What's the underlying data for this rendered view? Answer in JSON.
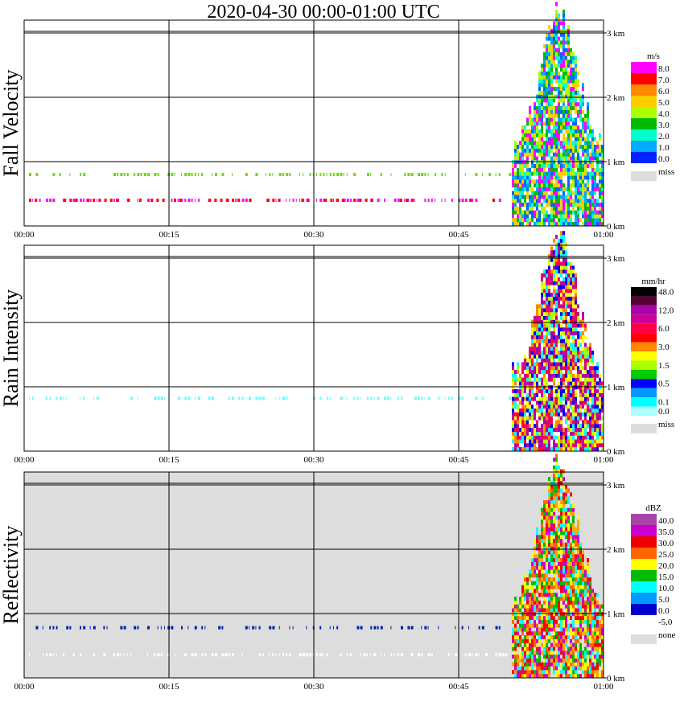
{
  "title": "2020-04-30   00:00-01:00 UTC",
  "chart_data": [
    {
      "type": "heatmap",
      "name": "Fall Velocity",
      "ylabel": "Fall Velocity",
      "x_ticks": [
        "00:00",
        "00:15",
        "00:30",
        "00:45",
        "01:00"
      ],
      "xlim_minutes": [
        0,
        60
      ],
      "y_ticks": [
        "0 km",
        "1 km",
        "2 km",
        "3 km"
      ],
      "ylim_km": [
        0,
        3.2
      ],
      "grid": true,
      "background": "#ffffff",
      "colorbar": {
        "unit": "m/s",
        "labels": [
          "8.0",
          "7.0",
          "6.0",
          "5.0",
          "4.0",
          "3.0",
          "2.0",
          "1.0",
          "0.0"
        ],
        "colors": [
          "#ff00ff",
          "#ff0000",
          "#ff8800",
          "#ffcc00",
          "#aaff00",
          "#00bb00",
          "#00ffcc",
          "#00aaff",
          "#0022ff"
        ],
        "miss_label": "miss",
        "miss_color": "#dddddd"
      },
      "bands": [
        {
          "height_km": 0.4,
          "color": "#ff00ff"
        },
        {
          "height_km": 0.8,
          "color": "#66dd00"
        }
      ],
      "event": {
        "start_min": 50.5,
        "end_min": 60,
        "top_km": 3.15,
        "palette": [
          "#0066ff",
          "#00aaff",
          "#00ffcc",
          "#aaff00",
          "#ffcc00",
          "#ff00ff",
          "#00bb00"
        ]
      }
    },
    {
      "type": "heatmap",
      "name": "Rain Intensity",
      "ylabel": "Rain Intensity",
      "x_ticks": [
        "00:00",
        "00:15",
        "00:30",
        "00:45",
        "01:00"
      ],
      "xlim_minutes": [
        0,
        60
      ],
      "y_ticks": [
        "0 km",
        "1 km",
        "2 km",
        "3 km"
      ],
      "ylim_km": [
        0,
        3.2
      ],
      "grid": true,
      "background": "#ffffff",
      "colorbar": {
        "unit": "mm/hr",
        "labels": [
          "48.0",
          "12.0",
          "6.0",
          "3.0",
          "1.5",
          "0.5",
          "0.1",
          "0.0"
        ],
        "label_slots": [
          0,
          2,
          4,
          6,
          8,
          10,
          12,
          13
        ],
        "colors": [
          "#000000",
          "#550033",
          "#aa00aa",
          "#cc0099",
          "#ff0044",
          "#ff0000",
          "#ff8800",
          "#ffff00",
          "#aaff00",
          "#00cc00",
          "#0000ff",
          "#0099ff",
          "#00ffff",
          "#aaffff"
        ],
        "miss_label": "miss",
        "miss_color": "#dddddd"
      },
      "bands": [
        {
          "height_km": 0.82,
          "color": "#66ffff"
        }
      ],
      "event": {
        "start_min": 50.5,
        "end_min": 60,
        "top_km": 3.15,
        "palette": [
          "#cc0099",
          "#ff0044",
          "#aa00aa",
          "#0000ff",
          "#00ffff",
          "#ffff00",
          "#aaff00",
          "#ff8800"
        ]
      }
    },
    {
      "type": "heatmap",
      "name": "Reflectivity",
      "ylabel": "Reflectivity",
      "x_ticks": [
        "00:00",
        "00:15",
        "00:30",
        "00:45",
        "01:00"
      ],
      "xlim_minutes": [
        0,
        60
      ],
      "y_ticks": [
        "0 km",
        "1 km",
        "2 km",
        "3 km"
      ],
      "ylim_km": [
        0,
        3.2
      ],
      "grid": true,
      "background": "#dddddd",
      "colorbar": {
        "unit": "dBZ",
        "labels": [
          "40.0",
          "35.0",
          "30.0",
          "25.0",
          "20.0",
          "15.0",
          "10.0",
          "5.0",
          "0.0",
          "-5.0"
        ],
        "colors": [
          "#aa44aa",
          "#cc00cc",
          "#ee0000",
          "#ff6600",
          "#ffff00",
          "#00bb00",
          "#00ffff",
          "#0099ff",
          "#0000cc",
          "#ffffff"
        ],
        "miss_label": "none",
        "miss_color": "#dddddd"
      },
      "bands": [
        {
          "height_km": 0.78,
          "color": "#0022aa"
        },
        {
          "height_km": 0.36,
          "color": "#ffffff"
        }
      ],
      "event": {
        "start_min": 50.5,
        "end_min": 60,
        "top_km": 3.15,
        "palette": [
          "#ff0000",
          "#ffff00",
          "#ff6600",
          "#cc00cc",
          "#00bb00",
          "#00ffff",
          "#ffaa00"
        ]
      }
    }
  ]
}
